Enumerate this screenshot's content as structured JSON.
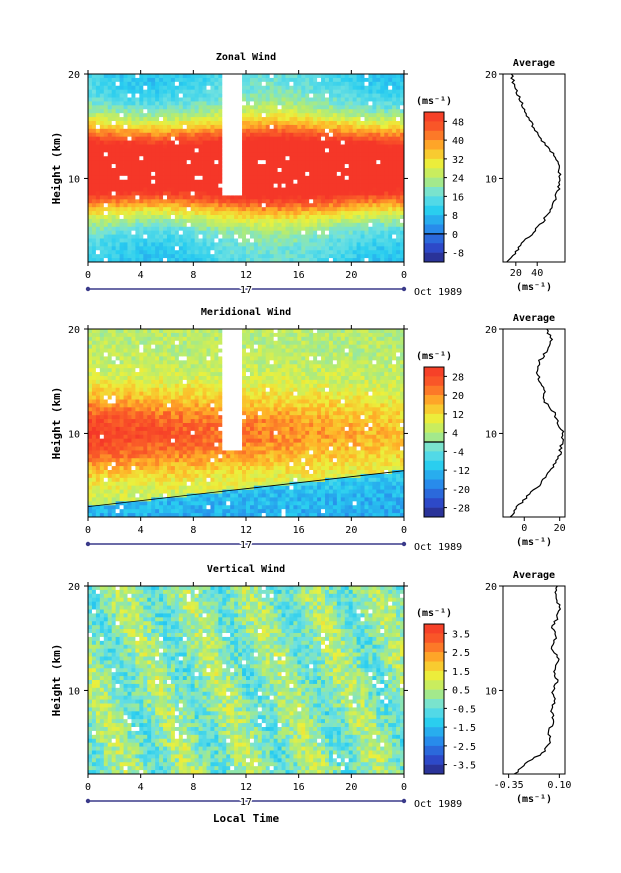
{
  "chart_data": [
    {
      "type": "heatmap",
      "title": "Zonal Wind",
      "ylabel": "Height (km)",
      "ylim": [
        2,
        20
      ],
      "yticks": [
        10,
        20
      ],
      "xlim": [
        0,
        24
      ],
      "xtick_labels": [
        "0",
        "4",
        "8",
        "12",
        "16",
        "20",
        "0"
      ],
      "date_label": "17",
      "date_suffix": "Oct 1989",
      "colorbar": {
        "units_label": "(ms⁻¹)",
        "tick_labels": [
          "48",
          "40",
          "32",
          "24",
          "16",
          "8",
          "0",
          "-8"
        ],
        "range": [
          -12,
          52
        ],
        "zero_line": true
      },
      "profile": {
        "title": "Average",
        "xlabel": "(ms⁻¹)",
        "xtick_labels": [
          "20",
          "40"
        ],
        "xlim": [
          8,
          66
        ],
        "heights": [
          2,
          3,
          4,
          5,
          6,
          7,
          8,
          9,
          10,
          11,
          12,
          13,
          14,
          15,
          16,
          17,
          18,
          19,
          20
        ],
        "values": [
          12,
          20,
          28,
          38,
          46,
          52,
          57,
          60,
          61,
          60,
          57,
          50,
          42,
          36,
          30,
          26,
          22,
          18,
          16
        ]
      }
    },
    {
      "type": "heatmap",
      "title": "Meridional Wind",
      "ylabel": "Height (km)",
      "ylim": [
        2,
        20
      ],
      "yticks": [
        10,
        20
      ],
      "xlim": [
        0,
        24
      ],
      "xtick_labels": [
        "0",
        "4",
        "8",
        "12",
        "16",
        "20",
        "0"
      ],
      "date_label": "17",
      "date_suffix": "Oct 1989",
      "colorbar": {
        "units_label": "(ms⁻¹)",
        "tick_labels": [
          "28",
          "20",
          "12",
          "4",
          "-4",
          "-12",
          "-20",
          "-28"
        ],
        "range": [
          -32,
          32
        ],
        "zero_line": true
      },
      "profile": {
        "title": "Average",
        "xlabel": "(ms⁻¹)",
        "xtick_labels": [
          "0",
          "20"
        ],
        "xlim": [
          -12,
          23
        ],
        "heights": [
          2,
          3,
          4,
          5,
          6,
          7,
          8,
          9,
          10,
          11,
          12,
          13,
          14,
          15,
          16,
          17,
          18,
          19,
          20
        ],
        "values": [
          -8,
          -4,
          2,
          8,
          13,
          17,
          20,
          21,
          22,
          19,
          17,
          12,
          11,
          9,
          7,
          9,
          13,
          15,
          13
        ]
      }
    },
    {
      "type": "heatmap",
      "title": "Vertical Wind",
      "ylabel": "Height (km)",
      "xlabel": "Local Time",
      "ylim": [
        2,
        20
      ],
      "yticks": [
        10,
        20
      ],
      "xlim": [
        0,
        24
      ],
      "xtick_labels": [
        "0",
        "4",
        "8",
        "12",
        "16",
        "20",
        "0"
      ],
      "date_label": "17",
      "date_suffix": "Oct 1989",
      "colorbar": {
        "units_label": "(ms⁻¹)",
        "tick_labels": [
          "3.5",
          "2.5",
          "1.5",
          "0.5",
          "-0.5",
          "-1.5",
          "-2.5",
          "-3.5"
        ],
        "range": [
          -4,
          4
        ],
        "zero_line": false
      },
      "profile": {
        "title": "Average",
        "xlabel": "(ms⁻¹)",
        "xtick_labels": [
          "-0.35",
          "0.10"
        ],
        "xlim": [
          -0.4,
          0.15
        ],
        "heights": [
          2,
          3,
          4,
          5,
          6,
          7,
          8,
          9,
          10,
          11,
          12,
          13,
          14,
          15,
          16,
          17,
          18,
          19,
          20
        ],
        "values": [
          -0.3,
          -0.2,
          -0.05,
          0.02,
          0.0,
          0.05,
          0.03,
          0.06,
          0.04,
          0.08,
          0.05,
          0.09,
          0.03,
          0.07,
          0.04,
          0.08,
          0.1,
          0.06,
          0.08
        ]
      }
    }
  ]
}
